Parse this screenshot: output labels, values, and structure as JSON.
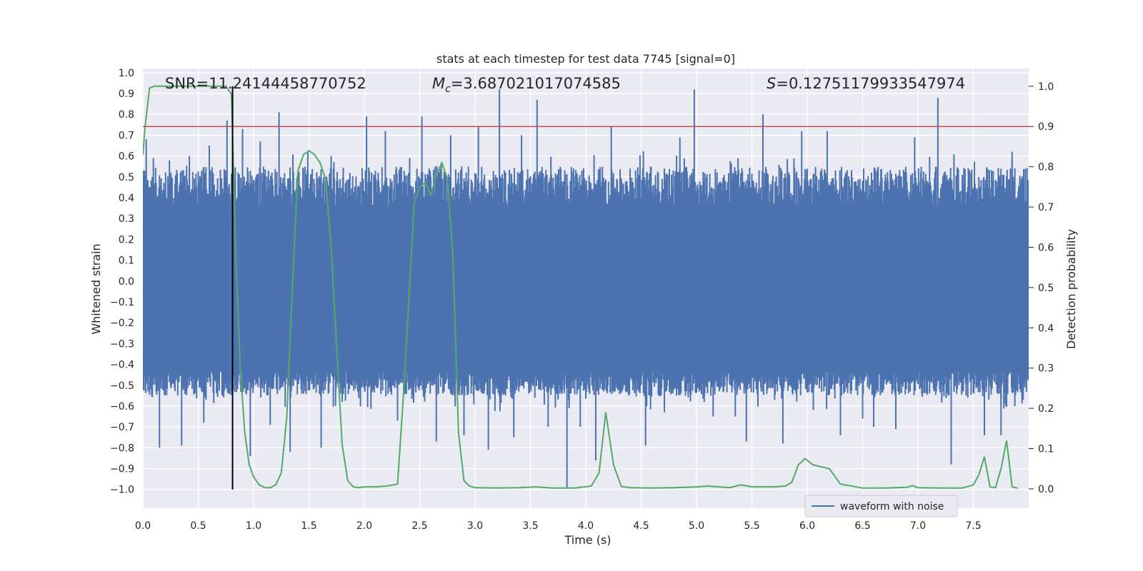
{
  "chart_data": {
    "type": "line",
    "title": "stats at each timestep for test data 7745 [signal=0]",
    "xlabel": "Time (s)",
    "ylabel": "Whitened strain",
    "y2label": "Detection probability",
    "xlim": [
      0.0,
      8.0
    ],
    "ylim": [
      -1.09,
      1.02
    ],
    "y2lim": [
      -0.048,
      1.044
    ],
    "xticks": [
      "0.0",
      "0.5",
      "1.0",
      "1.5",
      "2.0",
      "2.5",
      "3.0",
      "3.5",
      "4.0",
      "4.5",
      "5.0",
      "5.5",
      "6.0",
      "6.5",
      "7.0",
      "7.5"
    ],
    "yticks": [
      "1.0",
      "0.9",
      "0.8",
      "0.7",
      "0.6",
      "0.5",
      "0.4",
      "0.3",
      "0.2",
      "0.1",
      "0.0",
      "−0.1",
      "−0.2",
      "−0.3",
      "−0.4",
      "−0.5",
      "−0.6",
      "−0.7",
      "−0.8",
      "−0.9",
      "−1.0"
    ],
    "y2ticks": [
      "1.0",
      "0.9",
      "0.8",
      "0.7",
      "0.6",
      "0.5",
      "0.4",
      "0.3",
      "0.2",
      "0.1",
      "0.0"
    ],
    "grid": true,
    "legend_position": "bottom-right",
    "annotations": {
      "snr": "SNR=11.24144458770752",
      "mc_symbol": "M",
      "mc_sub": "c",
      "mc_value": "=3.687021017074585",
      "s_symbol": "S",
      "s_value": "=0.12751179933547974"
    },
    "threshold": {
      "axis": "right",
      "value": 0.9,
      "color": "#c44e52"
    },
    "marker_time": 0.81,
    "colors": {
      "waveform": "#4c72b0",
      "probability": "#55a868",
      "threshold": "#c44e52",
      "marker": "#000000",
      "plot_bg": "#eaeaf2",
      "grid": "#ffffff"
    },
    "series": [
      {
        "name": "waveform with noise",
        "axis": "left",
        "representation": "dense noisy strain, sampled every 0.005 s (min,max per bin)",
        "bin_width": 0.005,
        "core_band": [
          -0.43,
          0.35
        ],
        "typical_envelope": [
          -0.55,
          0.55
        ],
        "spikes": [
          {
            "x": 0.03,
            "y": 0.68
          },
          {
            "x": 0.08,
            "y": -0.55
          },
          {
            "x": 0.15,
            "y": -0.8
          },
          {
            "x": 0.24,
            "y": 0.58
          },
          {
            "x": 0.35,
            "y": -0.79
          },
          {
            "x": 0.42,
            "y": 0.6
          },
          {
            "x": 0.55,
            "y": -0.68
          },
          {
            "x": 0.6,
            "y": 0.65
          },
          {
            "x": 0.76,
            "y": 0.77
          },
          {
            "x": 0.84,
            "y": -0.5
          },
          {
            "x": 0.9,
            "y": 0.73
          },
          {
            "x": 0.97,
            "y": -0.84
          },
          {
            "x": 1.06,
            "y": 0.67
          },
          {
            "x": 1.15,
            "y": -0.69
          },
          {
            "x": 1.23,
            "y": 0.81
          },
          {
            "x": 1.33,
            "y": -0.82
          },
          {
            "x": 1.49,
            "y": 0.62
          },
          {
            "x": 1.61,
            "y": -0.8
          },
          {
            "x": 1.7,
            "y": 0.6
          },
          {
            "x": 1.8,
            "y": -0.58
          },
          {
            "x": 2.02,
            "y": 0.79
          },
          {
            "x": 2.19,
            "y": 0.72
          },
          {
            "x": 2.3,
            "y": -0.67
          },
          {
            "x": 2.52,
            "y": 0.79
          },
          {
            "x": 2.65,
            "y": -0.77
          },
          {
            "x": 2.78,
            "y": 0.7
          },
          {
            "x": 2.9,
            "y": -0.74
          },
          {
            "x": 3.03,
            "y": 0.74
          },
          {
            "x": 3.12,
            "y": -0.81
          },
          {
            "x": 3.22,
            "y": 0.92
          },
          {
            "x": 3.35,
            "y": -0.75
          },
          {
            "x": 3.42,
            "y": 0.7
          },
          {
            "x": 3.56,
            "y": 0.87
          },
          {
            "x": 3.66,
            "y": -0.7
          },
          {
            "x": 3.83,
            "y": -0.99
          },
          {
            "x": 3.95,
            "y": -0.7
          },
          {
            "x": 4.09,
            "y": -0.86
          },
          {
            "x": 4.23,
            "y": 0.74
          },
          {
            "x": 4.39,
            "y": -0.55
          },
          {
            "x": 4.54,
            "y": -0.79
          },
          {
            "x": 4.71,
            "y": -0.63
          },
          {
            "x": 4.85,
            "y": 0.69
          },
          {
            "x": 4.98,
            "y": 0.92
          },
          {
            "x": 5.15,
            "y": -0.65
          },
          {
            "x": 5.35,
            "y": -0.65
          },
          {
            "x": 5.45,
            "y": -0.77
          },
          {
            "x": 5.6,
            "y": 0.8
          },
          {
            "x": 5.78,
            "y": -0.78
          },
          {
            "x": 5.95,
            "y": 0.72
          },
          {
            "x": 6.18,
            "y": 0.72
          },
          {
            "x": 6.3,
            "y": -0.74
          },
          {
            "x": 6.5,
            "y": -0.66
          },
          {
            "x": 6.6,
            "y": -0.7
          },
          {
            "x": 6.8,
            "y": -0.71
          },
          {
            "x": 6.97,
            "y": 0.69
          },
          {
            "x": 7.18,
            "y": 0.88
          },
          {
            "x": 7.3,
            "y": -0.88
          },
          {
            "x": 7.45,
            "y": -0.56
          },
          {
            "x": 7.6,
            "y": -0.74
          },
          {
            "x": 7.75,
            "y": -0.74
          },
          {
            "x": 7.85,
            "y": 0.62
          },
          {
            "x": 7.95,
            "y": -0.57
          }
        ]
      },
      {
        "name": "detection probability",
        "axis": "right",
        "x": [
          0.0,
          0.02,
          0.06,
          0.1,
          0.2,
          0.3,
          0.4,
          0.5,
          0.6,
          0.7,
          0.75,
          0.8,
          0.84,
          0.88,
          0.92,
          0.96,
          1.0,
          1.05,
          1.1,
          1.15,
          1.2,
          1.25,
          1.3,
          1.35,
          1.4,
          1.45,
          1.5,
          1.55,
          1.6,
          1.65,
          1.7,
          1.75,
          1.8,
          1.85,
          1.9,
          1.95,
          2.0,
          2.1,
          2.2,
          2.3,
          2.35,
          2.4,
          2.45,
          2.5,
          2.55,
          2.6,
          2.65,
          2.7,
          2.75,
          2.8,
          2.85,
          2.9,
          2.95,
          3.0,
          3.2,
          3.4,
          3.55,
          3.7,
          3.9,
          4.05,
          4.12,
          4.18,
          4.25,
          4.32,
          4.4,
          4.6,
          4.8,
          5.0,
          5.1,
          5.2,
          5.3,
          5.4,
          5.5,
          5.6,
          5.7,
          5.8,
          5.86,
          5.92,
          5.98,
          6.05,
          6.12,
          6.2,
          6.3,
          6.5,
          6.7,
          6.9,
          6.95,
          7.0,
          7.2,
          7.4,
          7.5,
          7.55,
          7.6,
          7.65,
          7.7,
          7.75,
          7.8,
          7.85,
          7.9
        ],
        "y": [
          0.83,
          0.9,
          0.995,
          1.0,
          1.0,
          1.0,
          1.0,
          1.0,
          1.0,
          1.0,
          1.0,
          0.98,
          0.57,
          0.3,
          0.14,
          0.06,
          0.03,
          0.01,
          0.003,
          0.003,
          0.01,
          0.04,
          0.18,
          0.5,
          0.79,
          0.83,
          0.84,
          0.83,
          0.81,
          0.77,
          0.6,
          0.35,
          0.11,
          0.02,
          0.005,
          0.003,
          0.005,
          0.005,
          0.007,
          0.012,
          0.22,
          0.46,
          0.71,
          0.75,
          0.76,
          0.73,
          0.78,
          0.81,
          0.77,
          0.58,
          0.14,
          0.02,
          0.007,
          0.003,
          0.002,
          0.003,
          0.005,
          0.002,
          0.002,
          0.007,
          0.04,
          0.19,
          0.06,
          0.006,
          0.003,
          0.002,
          0.003,
          0.005,
          0.007,
          0.005,
          0.003,
          0.01,
          0.005,
          0.005,
          0.005,
          0.007,
          0.016,
          0.06,
          0.075,
          0.06,
          0.055,
          0.05,
          0.012,
          0.002,
          0.002,
          0.004,
          0.008,
          0.003,
          0.002,
          0.002,
          0.01,
          0.035,
          0.08,
          0.005,
          0.003,
          0.05,
          0.12,
          0.005,
          0.002
        ]
      }
    ]
  }
}
